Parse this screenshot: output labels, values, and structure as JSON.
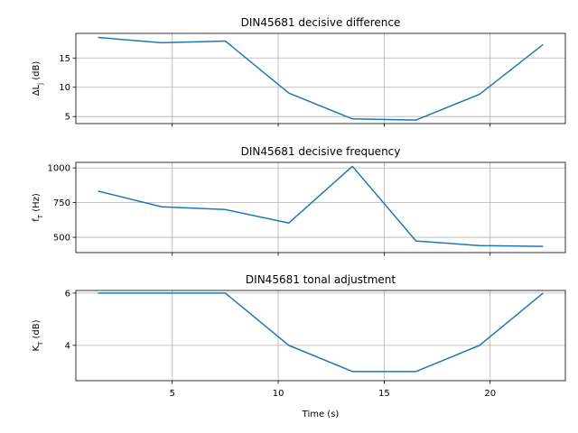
{
  "chart_data": [
    {
      "type": "line",
      "title": "DIN45681 decisive difference",
      "ylabel": "ΔL",
      "ylabel_sub": "j",
      "ylabel_unit": " (dB)",
      "xlabel": "",
      "xlim": [
        0.45,
        23.55
      ],
      "ylim": [
        3.8,
        19.2
      ],
      "yticks": [
        5,
        10,
        15
      ],
      "xticks": [
        5,
        10,
        15,
        20
      ],
      "show_xticklabels": false,
      "grid": true,
      "x": [
        1.5,
        4.5,
        7.5,
        10.5,
        13.5,
        16.5,
        19.5,
        22.5
      ],
      "series": [
        {
          "values": [
            18.5,
            17.6,
            17.9,
            9.0,
            4.6,
            4.4,
            8.8,
            17.3
          ]
        }
      ]
    },
    {
      "type": "line",
      "title": "DIN45681 decisive frequency",
      "ylabel": "f",
      "ylabel_sub": "T",
      "ylabel_unit": " (Hz)",
      "xlabel": "",
      "xlim": [
        0.45,
        23.55
      ],
      "ylim": [
        390,
        1040
      ],
      "yticks": [
        500,
        750,
        1000
      ],
      "xticks": [
        5,
        10,
        15,
        20
      ],
      "show_xticklabels": false,
      "grid": true,
      "x": [
        1.5,
        4.5,
        7.5,
        10.5,
        13.5,
        16.5,
        19.5,
        22.5
      ],
      "series": [
        {
          "values": [
            833,
            720,
            700,
            603,
            1012,
            474,
            440,
            435
          ]
        }
      ]
    },
    {
      "type": "line",
      "title": "DIN45681 tonal adjustment",
      "ylabel": "K",
      "ylabel_sub": "T",
      "ylabel_unit": " (dB)",
      "xlabel": "Time (s)",
      "xlim": [
        0.45,
        23.55
      ],
      "ylim": [
        2.65,
        6.1
      ],
      "yticks": [
        4,
        6
      ],
      "xticks": [
        5,
        10,
        15,
        20
      ],
      "show_xticklabels": true,
      "grid": true,
      "x": [
        1.5,
        4.5,
        7.5,
        10.5,
        13.5,
        16.5,
        19.5,
        22.5
      ],
      "series": [
        {
          "values": [
            6,
            6,
            6,
            4,
            3,
            3,
            4,
            6
          ]
        }
      ]
    }
  ],
  "colors": {
    "line": "#1f77b4",
    "grid": "#b0b0b0"
  }
}
